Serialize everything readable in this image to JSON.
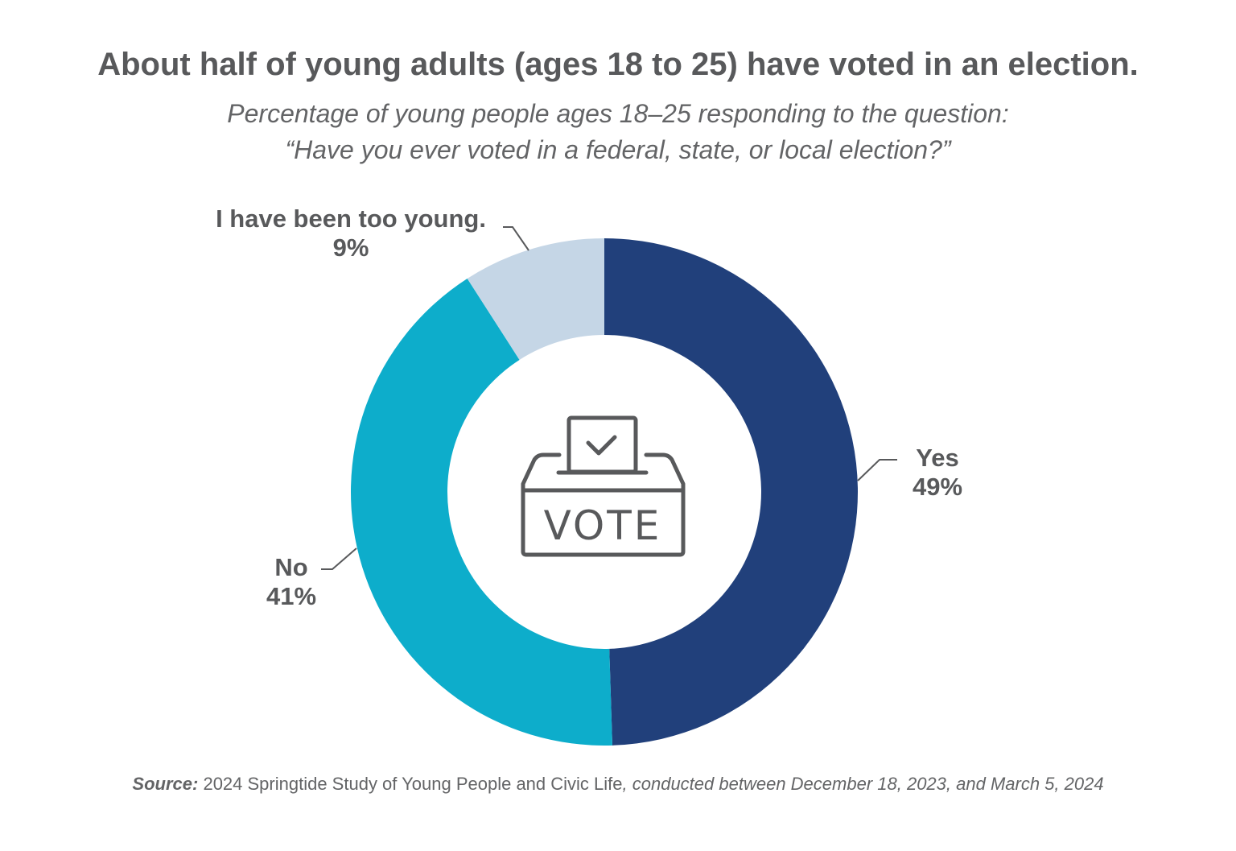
{
  "chart_data": {
    "type": "pie",
    "variant": "donut",
    "title": "About half of young adults (ages 18 to 25) have voted in an election.",
    "subtitle": [
      "Percentage of young people ages 18–25 responding to the question:",
      "“Have you ever voted in a federal, state, or local election?”"
    ],
    "slices": [
      {
        "label": "Yes",
        "value": 49,
        "value_label": "49%",
        "color": "#21407b"
      },
      {
        "label": "No",
        "value": 41,
        "value_label": "41%",
        "color": "#0dadcb"
      },
      {
        "label": "I have been too young.",
        "value": 9,
        "value_label": "9%",
        "color": "#c5d6e6"
      }
    ],
    "start": "top",
    "direction": "clockwise",
    "center_icon": "ballot-box-icon",
    "center_icon_text": "VOTE"
  },
  "source": {
    "label": "Source:",
    "name": " 2024 Springtide Study of Young People and Civic Life",
    "detail": ", conducted between December 18, 2023, and March 5, 2024"
  }
}
